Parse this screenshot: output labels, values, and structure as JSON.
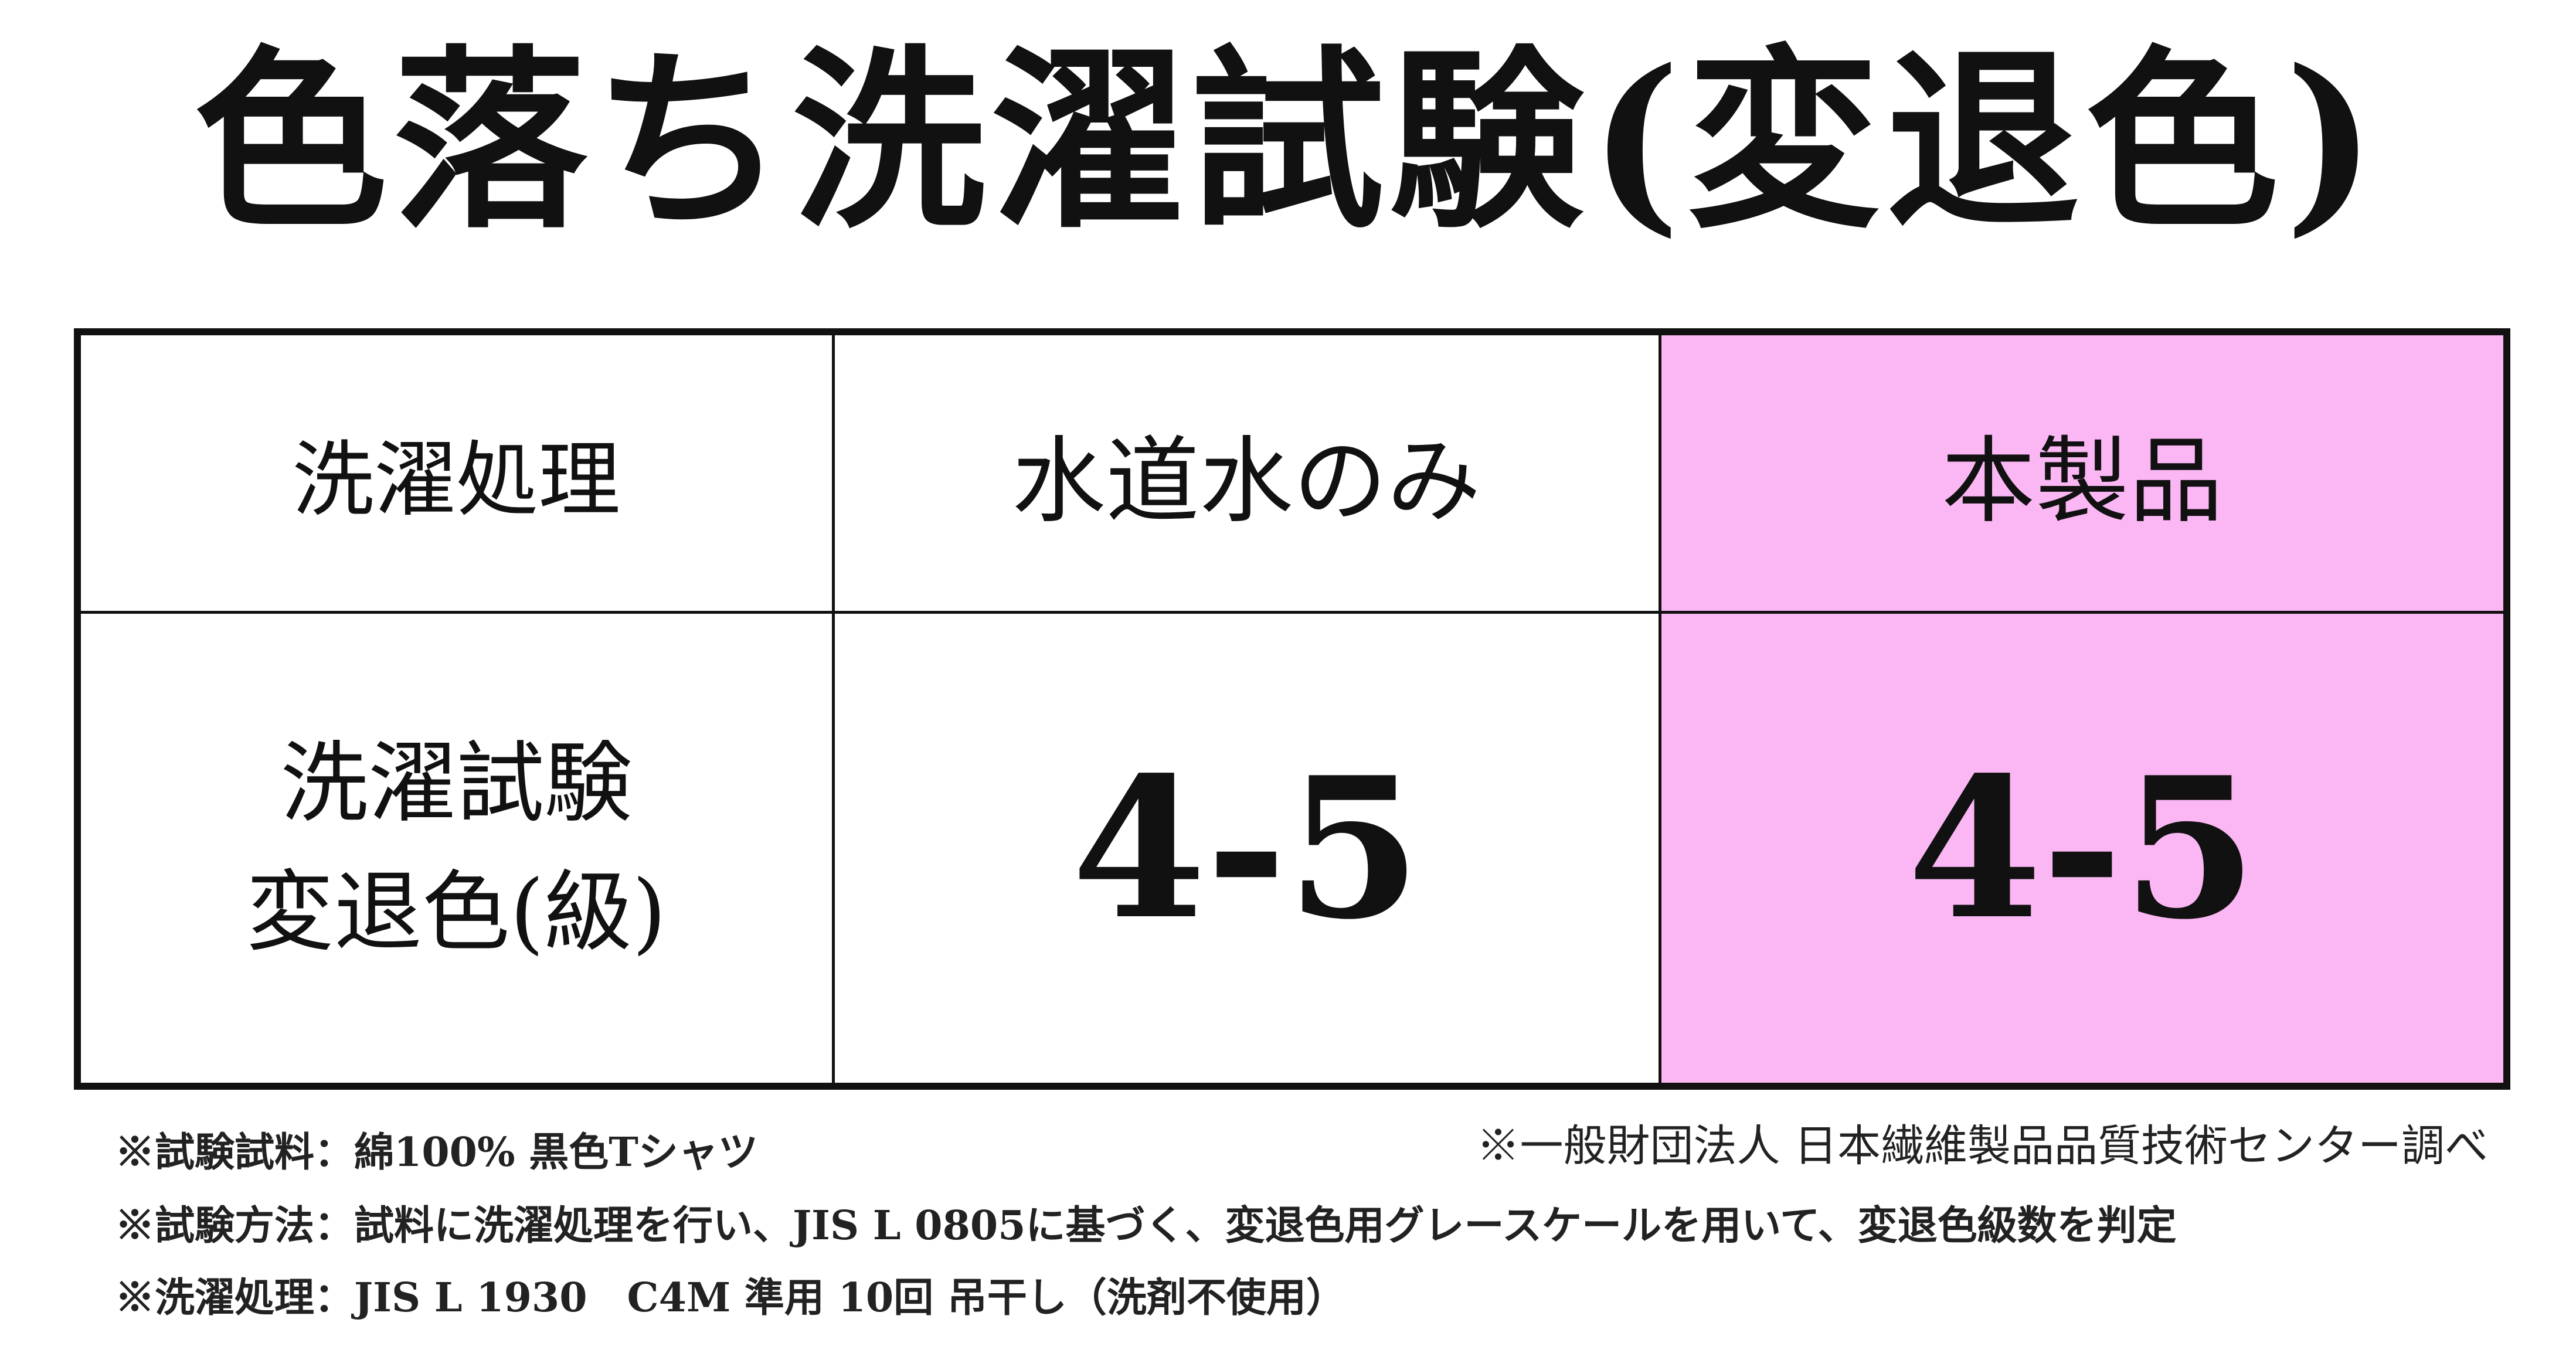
{
  "title": "色落ち洗濯試験(変退色)",
  "table": {
    "header": [
      "洗濯処理",
      "水道水のみ",
      "本製品"
    ],
    "row": {
      "label_line1": "洗濯試験",
      "label_line2": "変退色(級)",
      "values": [
        "4-5",
        "4-5"
      ]
    },
    "highlight_color": "#fbb7f3"
  },
  "source": "※一般財団法人 日本繊維製品品質技術センター調べ",
  "notes": [
    "※試験試料：綿100% 黒色Tシャツ",
    "※試験方法：試料に洗濯処理を行い、JIS L 0805に基づく、変退色用グレースケールを用いて、変退色級数を判定",
    "※洗濯処理：JIS L 1930　C4M 準用 10回 吊干し（洗剤不使用）"
  ]
}
